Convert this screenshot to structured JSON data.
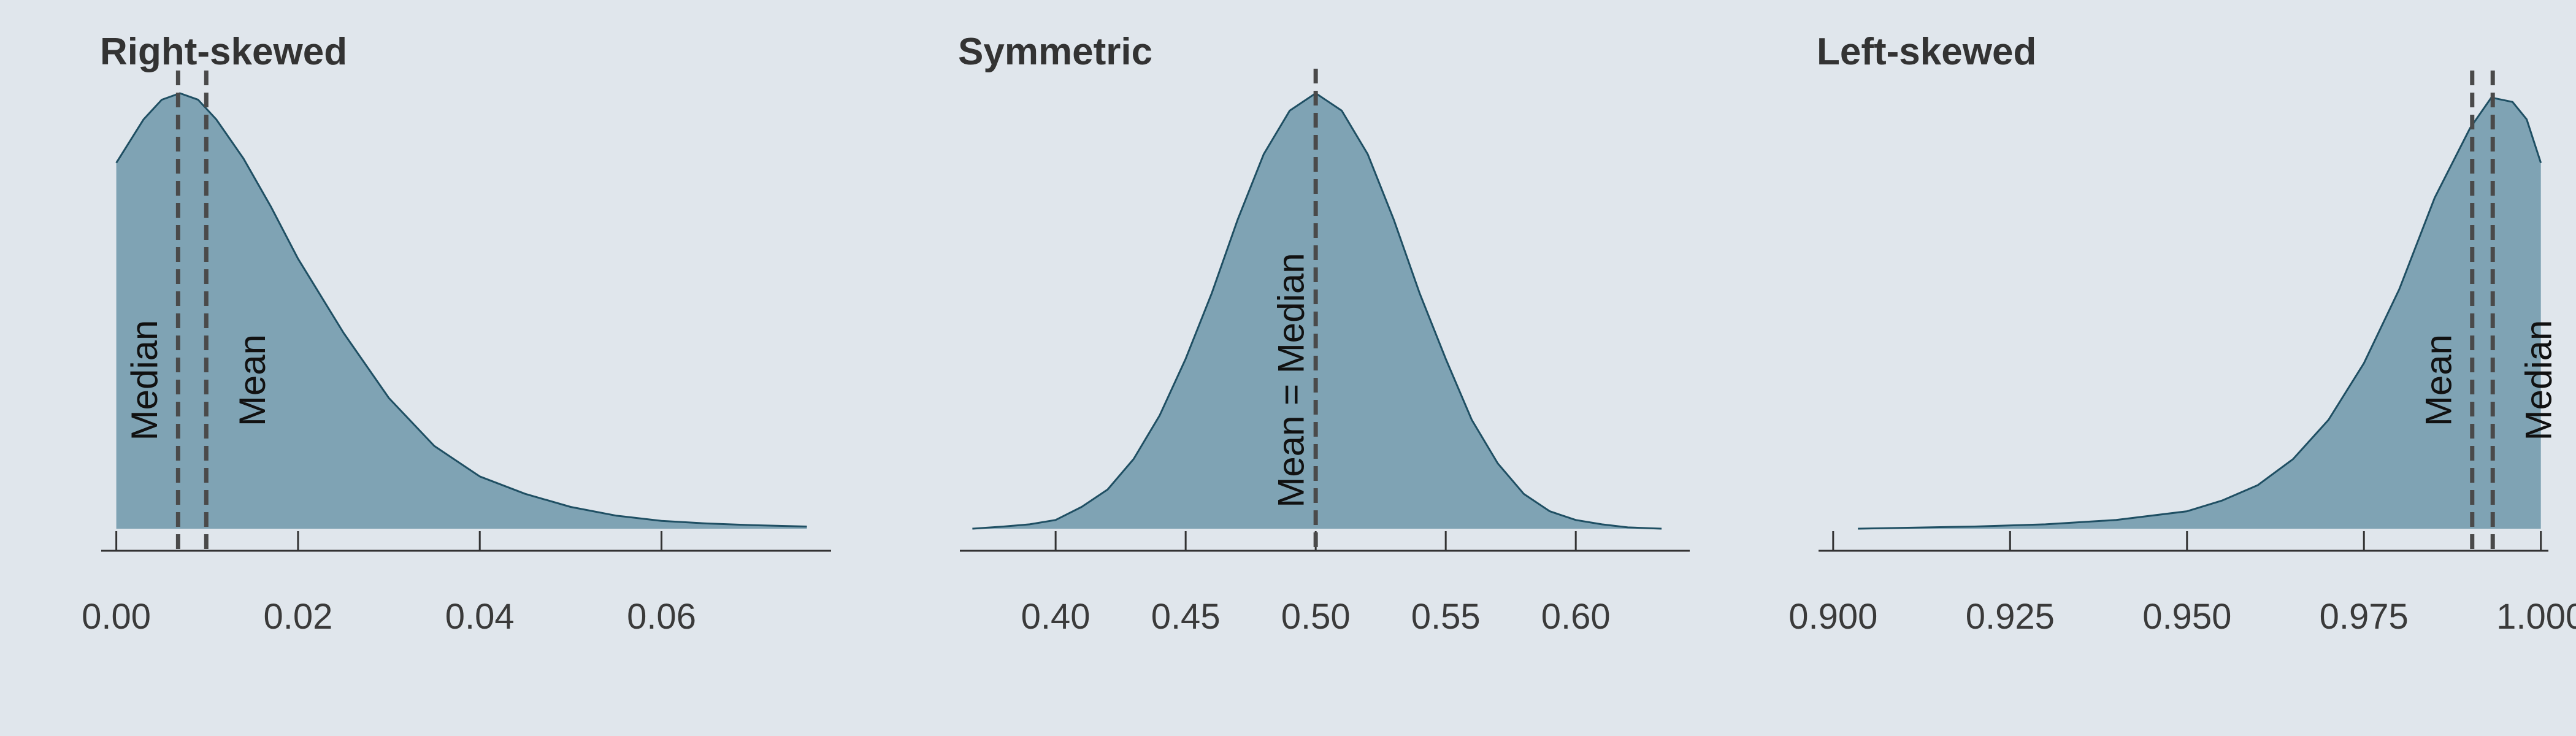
{
  "chart_data": [
    {
      "type": "area",
      "title": "Right-skewed",
      "xlabel": "",
      "ylabel": "",
      "xlim": [
        -0.002,
        0.079
      ],
      "ticks": [
        0.0,
        0.02,
        0.04,
        0.06
      ],
      "tick_labels": [
        "0.00",
        "0.02",
        "0.04",
        "0.06"
      ],
      "x": [
        0.0,
        0.003,
        0.005,
        0.007,
        0.009,
        0.011,
        0.014,
        0.017,
        0.02,
        0.025,
        0.03,
        0.035,
        0.04,
        0.045,
        0.05,
        0.055,
        0.06,
        0.065,
        0.07,
        0.076
      ],
      "y": [
        0.84,
        0.94,
        0.985,
        1.0,
        0.985,
        0.94,
        0.85,
        0.74,
        0.62,
        0.45,
        0.3,
        0.19,
        0.12,
        0.08,
        0.05,
        0.03,
        0.018,
        0.012,
        0.008,
        0.005
      ],
      "vlines": [
        {
          "name": "Median",
          "x": 0.0068,
          "label": "Median"
        },
        {
          "name": "Mean",
          "x": 0.0099,
          "label": "Mean"
        }
      ]
    },
    {
      "type": "area",
      "title": "Symmetric",
      "xlabel": "",
      "ylabel": "",
      "xlim": [
        0.362,
        0.645
      ],
      "ticks": [
        0.4,
        0.45,
        0.5,
        0.55,
        0.6
      ],
      "tick_labels": [
        "0.40",
        "0.45",
        "0.50",
        "0.55",
        "0.60"
      ],
      "x": [
        0.368,
        0.38,
        0.39,
        0.4,
        0.41,
        0.42,
        0.43,
        0.44,
        0.45,
        0.46,
        0.47,
        0.48,
        0.49,
        0.5,
        0.51,
        0.52,
        0.53,
        0.54,
        0.55,
        0.56,
        0.57,
        0.58,
        0.59,
        0.6,
        0.61,
        0.62,
        0.633
      ],
      "y": [
        0.0,
        0.005,
        0.01,
        0.02,
        0.05,
        0.09,
        0.16,
        0.26,
        0.39,
        0.54,
        0.71,
        0.86,
        0.96,
        1.0,
        0.96,
        0.86,
        0.71,
        0.54,
        0.39,
        0.25,
        0.15,
        0.08,
        0.04,
        0.02,
        0.01,
        0.003,
        0.0
      ],
      "vlines": [
        {
          "name": "Mean = Median",
          "x": 0.5,
          "label": "Mean = Median"
        }
      ]
    },
    {
      "type": "area",
      "title": "Left-skewed",
      "xlabel": "",
      "ylabel": "",
      "xlim": [
        0.8975,
        1.0015
      ],
      "ticks": [
        0.9,
        0.925,
        0.95,
        0.975,
        1.0
      ],
      "tick_labels": [
        "0.900",
        "0.925",
        "0.950",
        "0.975",
        "1.000"
      ],
      "x": [
        0.9035,
        0.91,
        0.92,
        0.93,
        0.94,
        0.95,
        0.955,
        0.96,
        0.965,
        0.97,
        0.975,
        0.98,
        0.985,
        0.99,
        0.993,
        0.996,
        0.998,
        1.0
      ],
      "y": [
        0.0,
        0.002,
        0.005,
        0.01,
        0.02,
        0.04,
        0.065,
        0.1,
        0.16,
        0.25,
        0.38,
        0.55,
        0.76,
        0.92,
        0.99,
        0.98,
        0.94,
        0.84
      ],
      "vlines": [
        {
          "name": "Mean",
          "x": 0.9903,
          "label": "Mean"
        },
        {
          "name": "Median",
          "x": 0.9932,
          "label": "Median"
        }
      ]
    }
  ],
  "colors": {
    "background": "#e0e6ec",
    "fill": "#7fa3b4",
    "outline": "#1f4f63",
    "vline": "#4a4a4a",
    "axis": "#333333"
  }
}
